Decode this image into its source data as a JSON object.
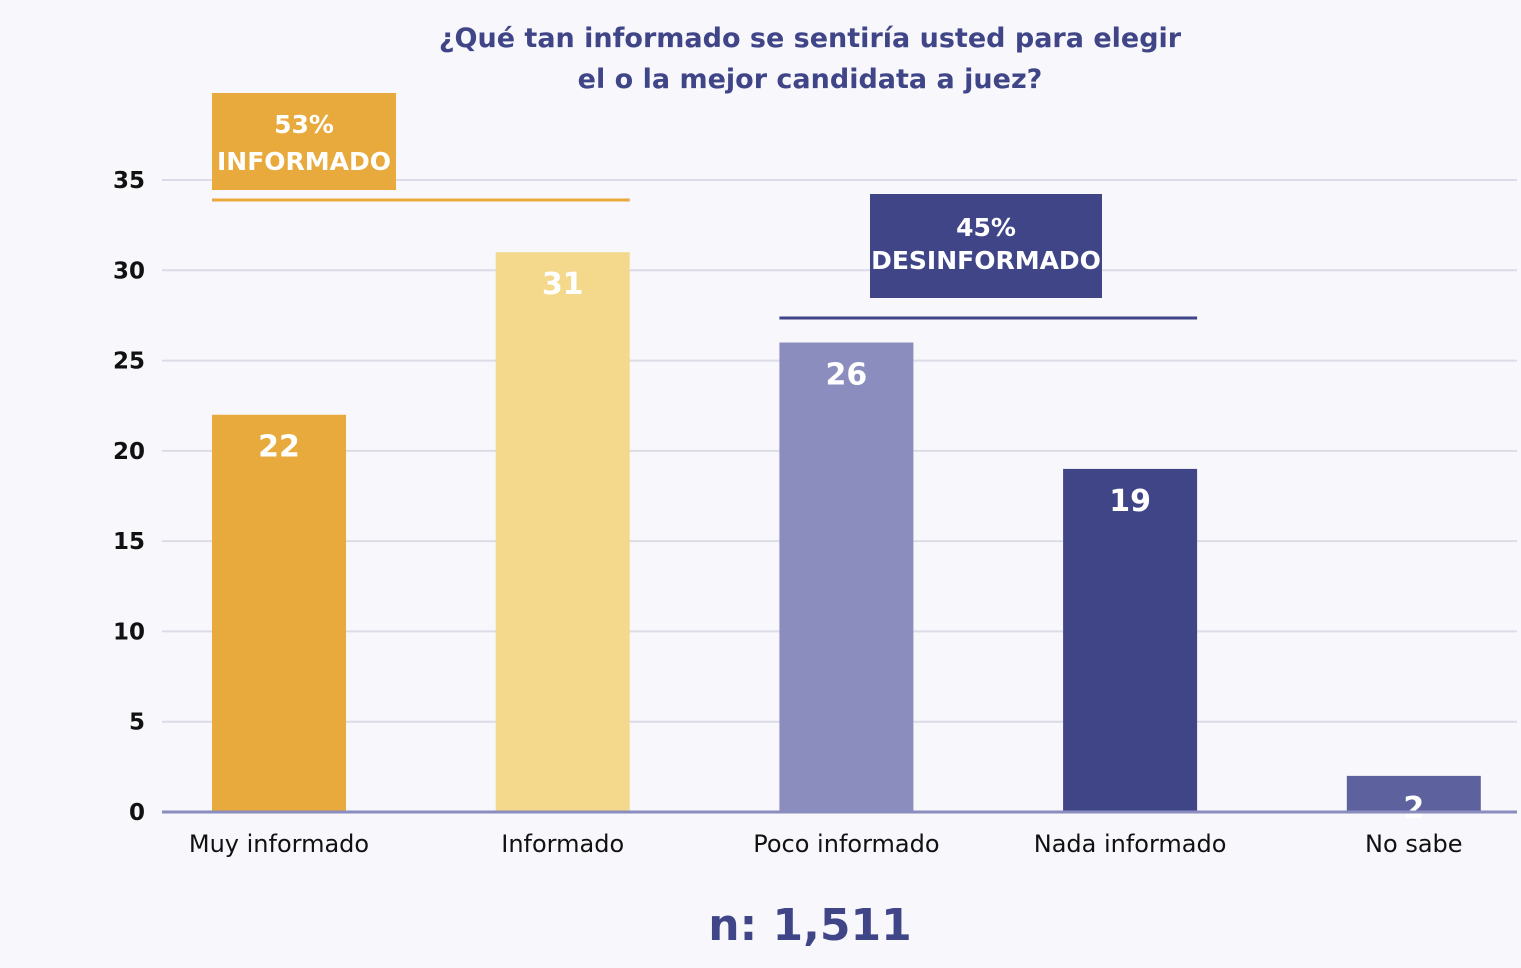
{
  "chart_data": {
    "type": "bar",
    "title": [
      "¿Qué tan informado se sentiría usted para elegir",
      "el o la mejor candidata a juez?"
    ],
    "categories": [
      "Muy informado",
      "Informado",
      "Poco informado",
      "Nada informado",
      "No sabe"
    ],
    "values": [
      22,
      31,
      26,
      19,
      2
    ],
    "colors": [
      "#e8aa3c",
      "#f4d98c",
      "#8a8dbe",
      "#3f4587",
      "#5d629e"
    ],
    "ylim": [
      0,
      35
    ],
    "yticks": [
      0,
      5,
      10,
      15,
      20,
      25,
      30,
      35
    ],
    "grid": true,
    "xlabel": "",
    "ylabel": "",
    "groups": [
      {
        "pct": "53%",
        "label": "INFORMADO",
        "color": "#e8aa3c",
        "from": 0,
        "to": 1
      },
      {
        "pct": "45%",
        "label": "DESINFORMADO",
        "color": "#3f4587",
        "from": 2,
        "to": 3
      }
    ],
    "footnote": "n: 1,511"
  }
}
